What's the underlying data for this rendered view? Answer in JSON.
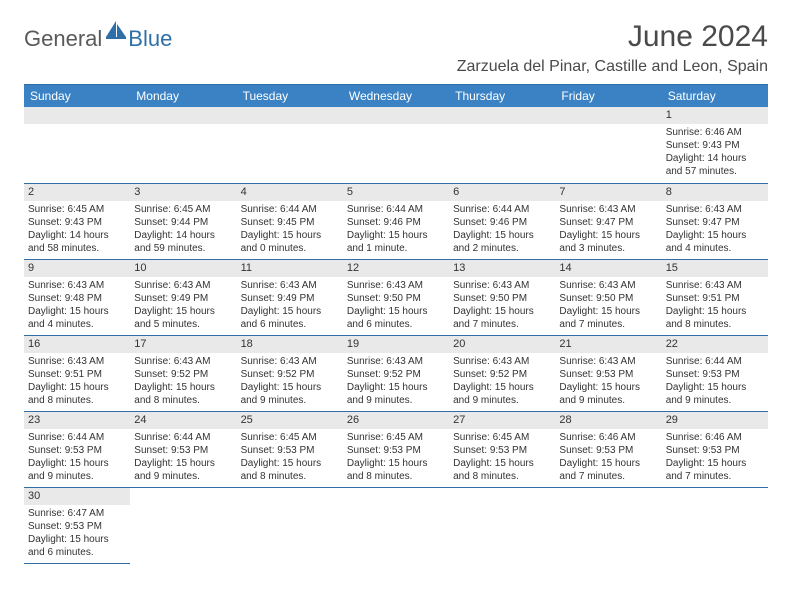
{
  "logo": {
    "text1": "General",
    "text2": "Blue"
  },
  "title": {
    "month": "June 2024",
    "location": "Zarzuela del Pinar, Castille and Leon, Spain"
  },
  "colors": {
    "header_bg": "#3b82c4",
    "border": "#2f6fa8",
    "daynum_bg": "#e9e9e9",
    "text": "#333333"
  },
  "weekdays": [
    "Sunday",
    "Monday",
    "Tuesday",
    "Wednesday",
    "Thursday",
    "Friday",
    "Saturday"
  ],
  "weeks": [
    [
      null,
      null,
      null,
      null,
      null,
      null,
      {
        "d": "1",
        "sr": "Sunrise: 6:46 AM",
        "ss": "Sunset: 9:43 PM",
        "dl": "Daylight: 14 hours and 57 minutes."
      }
    ],
    [
      {
        "d": "2",
        "sr": "Sunrise: 6:45 AM",
        "ss": "Sunset: 9:43 PM",
        "dl": "Daylight: 14 hours and 58 minutes."
      },
      {
        "d": "3",
        "sr": "Sunrise: 6:45 AM",
        "ss": "Sunset: 9:44 PM",
        "dl": "Daylight: 14 hours and 59 minutes."
      },
      {
        "d": "4",
        "sr": "Sunrise: 6:44 AM",
        "ss": "Sunset: 9:45 PM",
        "dl": "Daylight: 15 hours and 0 minutes."
      },
      {
        "d": "5",
        "sr": "Sunrise: 6:44 AM",
        "ss": "Sunset: 9:46 PM",
        "dl": "Daylight: 15 hours and 1 minute."
      },
      {
        "d": "6",
        "sr": "Sunrise: 6:44 AM",
        "ss": "Sunset: 9:46 PM",
        "dl": "Daylight: 15 hours and 2 minutes."
      },
      {
        "d": "7",
        "sr": "Sunrise: 6:43 AM",
        "ss": "Sunset: 9:47 PM",
        "dl": "Daylight: 15 hours and 3 minutes."
      },
      {
        "d": "8",
        "sr": "Sunrise: 6:43 AM",
        "ss": "Sunset: 9:47 PM",
        "dl": "Daylight: 15 hours and 4 minutes."
      }
    ],
    [
      {
        "d": "9",
        "sr": "Sunrise: 6:43 AM",
        "ss": "Sunset: 9:48 PM",
        "dl": "Daylight: 15 hours and 4 minutes."
      },
      {
        "d": "10",
        "sr": "Sunrise: 6:43 AM",
        "ss": "Sunset: 9:49 PM",
        "dl": "Daylight: 15 hours and 5 minutes."
      },
      {
        "d": "11",
        "sr": "Sunrise: 6:43 AM",
        "ss": "Sunset: 9:49 PM",
        "dl": "Daylight: 15 hours and 6 minutes."
      },
      {
        "d": "12",
        "sr": "Sunrise: 6:43 AM",
        "ss": "Sunset: 9:50 PM",
        "dl": "Daylight: 15 hours and 6 minutes."
      },
      {
        "d": "13",
        "sr": "Sunrise: 6:43 AM",
        "ss": "Sunset: 9:50 PM",
        "dl": "Daylight: 15 hours and 7 minutes."
      },
      {
        "d": "14",
        "sr": "Sunrise: 6:43 AM",
        "ss": "Sunset: 9:50 PM",
        "dl": "Daylight: 15 hours and 7 minutes."
      },
      {
        "d": "15",
        "sr": "Sunrise: 6:43 AM",
        "ss": "Sunset: 9:51 PM",
        "dl": "Daylight: 15 hours and 8 minutes."
      }
    ],
    [
      {
        "d": "16",
        "sr": "Sunrise: 6:43 AM",
        "ss": "Sunset: 9:51 PM",
        "dl": "Daylight: 15 hours and 8 minutes."
      },
      {
        "d": "17",
        "sr": "Sunrise: 6:43 AM",
        "ss": "Sunset: 9:52 PM",
        "dl": "Daylight: 15 hours and 8 minutes."
      },
      {
        "d": "18",
        "sr": "Sunrise: 6:43 AM",
        "ss": "Sunset: 9:52 PM",
        "dl": "Daylight: 15 hours and 9 minutes."
      },
      {
        "d": "19",
        "sr": "Sunrise: 6:43 AM",
        "ss": "Sunset: 9:52 PM",
        "dl": "Daylight: 15 hours and 9 minutes."
      },
      {
        "d": "20",
        "sr": "Sunrise: 6:43 AM",
        "ss": "Sunset: 9:52 PM",
        "dl": "Daylight: 15 hours and 9 minutes."
      },
      {
        "d": "21",
        "sr": "Sunrise: 6:43 AM",
        "ss": "Sunset: 9:53 PM",
        "dl": "Daylight: 15 hours and 9 minutes."
      },
      {
        "d": "22",
        "sr": "Sunrise: 6:44 AM",
        "ss": "Sunset: 9:53 PM",
        "dl": "Daylight: 15 hours and 9 minutes."
      }
    ],
    [
      {
        "d": "23",
        "sr": "Sunrise: 6:44 AM",
        "ss": "Sunset: 9:53 PM",
        "dl": "Daylight: 15 hours and 9 minutes."
      },
      {
        "d": "24",
        "sr": "Sunrise: 6:44 AM",
        "ss": "Sunset: 9:53 PM",
        "dl": "Daylight: 15 hours and 9 minutes."
      },
      {
        "d": "25",
        "sr": "Sunrise: 6:45 AM",
        "ss": "Sunset: 9:53 PM",
        "dl": "Daylight: 15 hours and 8 minutes."
      },
      {
        "d": "26",
        "sr": "Sunrise: 6:45 AM",
        "ss": "Sunset: 9:53 PM",
        "dl": "Daylight: 15 hours and 8 minutes."
      },
      {
        "d": "27",
        "sr": "Sunrise: 6:45 AM",
        "ss": "Sunset: 9:53 PM",
        "dl": "Daylight: 15 hours and 8 minutes."
      },
      {
        "d": "28",
        "sr": "Sunrise: 6:46 AM",
        "ss": "Sunset: 9:53 PM",
        "dl": "Daylight: 15 hours and 7 minutes."
      },
      {
        "d": "29",
        "sr": "Sunrise: 6:46 AM",
        "ss": "Sunset: 9:53 PM",
        "dl": "Daylight: 15 hours and 7 minutes."
      }
    ],
    [
      {
        "d": "30",
        "sr": "Sunrise: 6:47 AM",
        "ss": "Sunset: 9:53 PM",
        "dl": "Daylight: 15 hours and 6 minutes."
      },
      null,
      null,
      null,
      null,
      null,
      null
    ]
  ]
}
